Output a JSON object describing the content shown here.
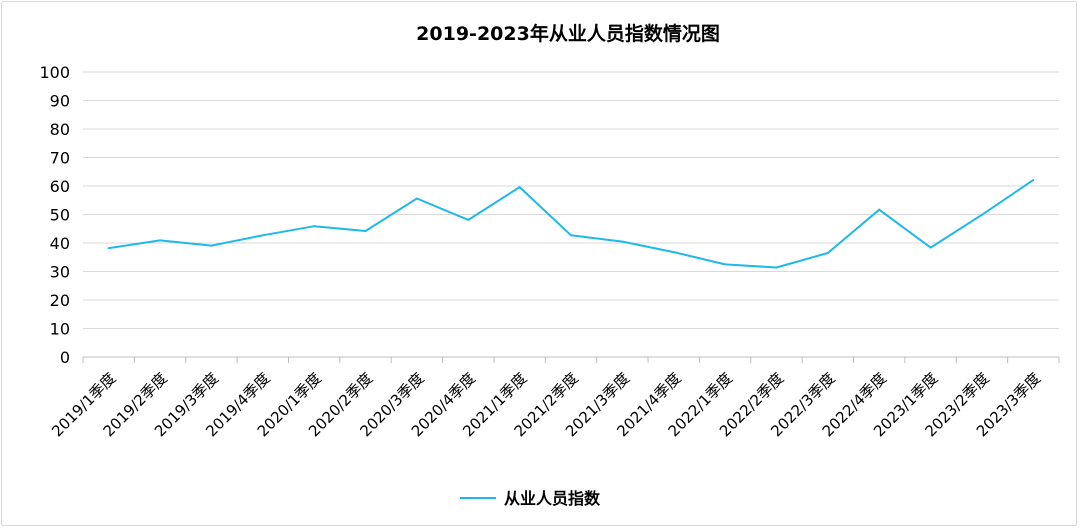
{
  "chart_data": {
    "type": "line",
    "title": "2019-2023年从业人员指数情况图",
    "xlabel": "",
    "ylabel": "",
    "ylim": [
      0,
      100
    ],
    "yticks": [
      0,
      10,
      20,
      30,
      40,
      50,
      60,
      70,
      80,
      90,
      100
    ],
    "grid": true,
    "legend_position": "bottom",
    "categories": [
      "2019/1季度",
      "2019/2季度",
      "2019/3季度",
      "2019/4季度",
      "2020/1季度",
      "2020/2季度",
      "2020/3季度",
      "2020/4季度",
      "2021/1季度",
      "2021/2季度",
      "2021/3季度",
      "2021/4季度",
      "2022/1季度",
      "2022/2季度",
      "2022/3季度",
      "2022/4季度",
      "2023/1季度",
      "2023/2季度",
      "2023/3季度"
    ],
    "series": [
      {
        "name": "从业人员指数",
        "color": "#1fb8ea",
        "values": [
          38.2,
          40.9,
          39.1,
          42.7,
          45.9,
          44.2,
          55.6,
          48.1,
          59.6,
          42.7,
          40.5,
          36.8,
          32.5,
          31.4,
          36.5,
          51.7,
          38.4,
          49.9,
          62.1
        ]
      }
    ],
    "colors": {
      "grid": "#d9d9d9",
      "axis": "#bfbfbf"
    }
  }
}
